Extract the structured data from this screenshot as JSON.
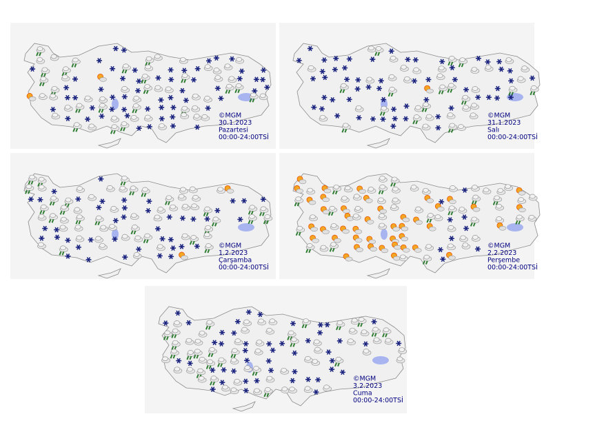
{
  "panels": [
    {
      "source": "©MGM",
      "date": "30.1.2023",
      "day": "Pazartesi",
      "time": "00:00-24:00TSİ"
    },
    {
      "source": "©MGM",
      "date": "31.1.2023",
      "day": "Salı",
      "time": "00:00-24:00TSİ"
    },
    {
      "source": "©MGM",
      "date": "1.2.2023",
      "day": "Çarşamba",
      "time": "00:00-24:00TSİ"
    },
    {
      "source": "©MGM",
      "date": "2.2.2023",
      "day": "Perşembe",
      "time": "00:00-24:00TSİ"
    },
    {
      "source": "©MGM",
      "date": "3.2.2023",
      "day": "Cuma",
      "time": "00:00-24:00TSİ"
    }
  ]
}
